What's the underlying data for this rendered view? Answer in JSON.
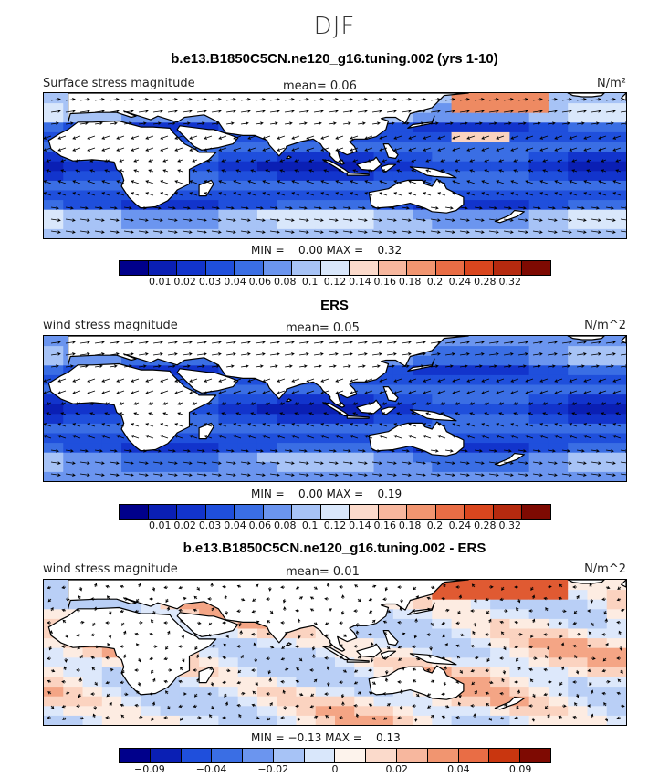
{
  "figure": {
    "season": "DJF"
  },
  "panels": [
    {
      "title": "b.e13.B1850C5CN.ne120_g16.tuning.002 (yrs 1-10)",
      "left_label": "Surface stress magnitude",
      "mean_text": "mean=    0.06",
      "units": "N/m²",
      "minmax_text": "MIN =    0.00 MAX =    0.32",
      "colorbar": {
        "tick_labels": [
          "0.01",
          "0.02",
          "0.03",
          "0.04",
          "0.06",
          "0.08",
          "0.1",
          "0.12",
          "0.14",
          "0.16",
          "0.18",
          "0.2",
          "0.24",
          "0.28",
          "0.32"
        ],
        "colors": [
          "#00008b",
          "#0a1fb4",
          "#1234cc",
          "#1f4fdc",
          "#3a6ee4",
          "#6b95ef",
          "#a7c3f6",
          "#d9e7fb",
          "#fbdacb",
          "#f7b79e",
          "#f19570",
          "#e96d45",
          "#d9461e",
          "#b52a0f",
          "#7e0a02"
        ]
      },
      "map": {
        "variant": "model"
      }
    },
    {
      "title": "ERS",
      "left_label": "wind stress magnitude",
      "mean_text": "mean=    0.05",
      "units": "N/m^2",
      "minmax_text": "MIN =    0.00 MAX =    0.19",
      "colorbar": {
        "tick_labels": [
          "0.01",
          "0.02",
          "0.03",
          "0.04",
          "0.06",
          "0.08",
          "0.1",
          "0.12",
          "0.14",
          "0.16",
          "0.18",
          "0.2",
          "0.24",
          "0.28",
          "0.32"
        ],
        "colors": [
          "#00008b",
          "#0a1fb4",
          "#1234cc",
          "#1f4fdc",
          "#3a6ee4",
          "#6b95ef",
          "#a7c3f6",
          "#d9e7fb",
          "#fbdacb",
          "#f7b79e",
          "#f19570",
          "#e96d45",
          "#d9461e",
          "#b52a0f",
          "#7e0a02"
        ]
      },
      "map": {
        "variant": "obs"
      }
    },
    {
      "title": "b.e13.B1850C5CN.ne120_g16.tuning.002 - ERS",
      "left_label": "wind stress magnitude",
      "mean_text": "mean=    0.01",
      "units": "N/m^2",
      "minmax_text": "MIN = −0.13 MAX =    0.13",
      "colorbar": {
        "tick_labels": [
          "−0.09",
          "−0.04",
          "−0.02",
          "0",
          "0.02",
          "0.04",
          "0.09"
        ],
        "colors": [
          "#00008b",
          "#0a1fb4",
          "#1f4fdc",
          "#3a6ee4",
          "#6b95ef",
          "#a7c3f6",
          "#d9e7fb",
          "#fdf3ec",
          "#fbdacb",
          "#f7b79e",
          "#f19570",
          "#e96d45",
          "#c9360f",
          "#7e0a02"
        ]
      },
      "map": {
        "variant": "diff"
      }
    }
  ]
}
